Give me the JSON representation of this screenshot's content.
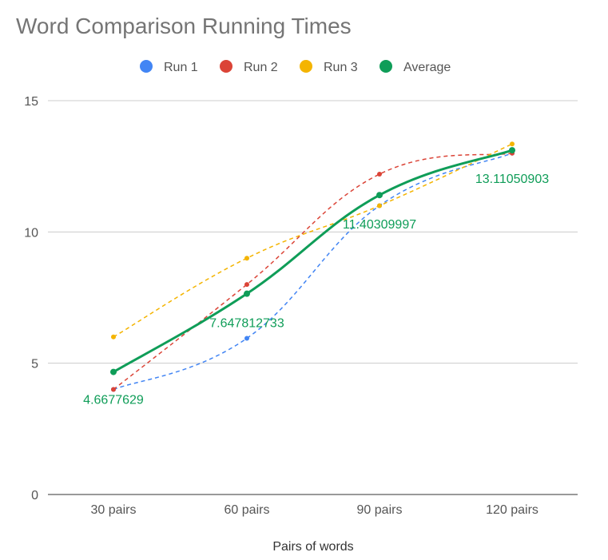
{
  "chart_data": {
    "type": "line",
    "title": "Word Comparison Running Times",
    "xlabel": "Pairs of words",
    "ylabel": "",
    "categories": [
      "30 pairs",
      "60 pairs",
      "90 pairs",
      "120 pairs"
    ],
    "ylim": [
      0,
      15
    ],
    "yticks": [
      "0",
      "5",
      "10",
      "15"
    ],
    "grid": true,
    "legend_position": "top",
    "series": [
      {
        "name": "Run 1",
        "color": "#4285f4",
        "style": "dashed",
        "values": [
          4.0,
          5.95,
          11.0,
          13.0
        ]
      },
      {
        "name": "Run 2",
        "color": "#db4437",
        "style": "dashed",
        "values": [
          4.0,
          8.0,
          12.2,
          13.0
        ]
      },
      {
        "name": "Run 3",
        "color": "#f4b400",
        "style": "dashed",
        "values": [
          6.0,
          9.0,
          11.0,
          13.35
        ]
      },
      {
        "name": "Average",
        "color": "#0f9d58",
        "style": "solid",
        "values": [
          4.6677629,
          7.647812733,
          11.40309997,
          13.11050903
        ],
        "data_labels": [
          "4.6677629",
          "7.647812733",
          "11.40309997",
          "13.11050903"
        ]
      }
    ]
  }
}
